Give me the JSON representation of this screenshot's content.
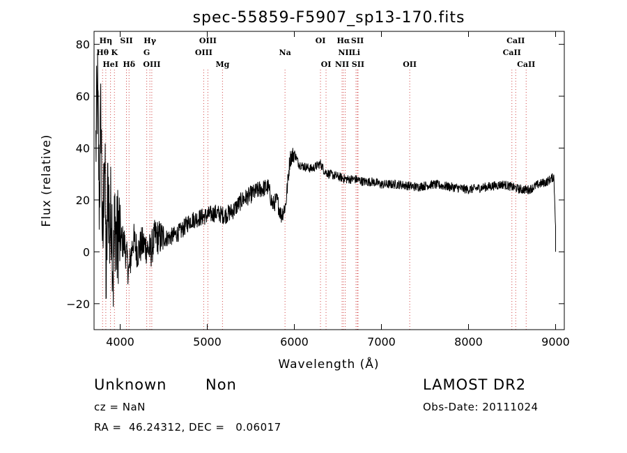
{
  "chart_data": {
    "type": "line",
    "title": "spec-55859-F5907_sp13-170.fits",
    "xlabel": "Wavelength (Å)",
    "ylabel": "Flux (relative)",
    "xlim": [
      3700,
      9100
    ],
    "ylim": [
      -30,
      85
    ],
    "xticks": [
      4000,
      5000,
      6000,
      7000,
      8000,
      9000
    ],
    "yticks": [
      -20,
      0,
      20,
      40,
      60,
      80
    ],
    "grid": false,
    "series": [
      {
        "color": "#000000",
        "x": [
          3720,
          3740,
          3760,
          3780,
          3800,
          3820,
          3840,
          3860,
          3880,
          3900,
          3920,
          3940,
          3960,
          3980,
          4000,
          4050,
          4100,
          4150,
          4200,
          4250,
          4300,
          4350,
          4400,
          4500,
          4600,
          4700,
          4800,
          4900,
          5000,
          5100,
          5200,
          5300,
          5400,
          5500,
          5600,
          5700,
          5750,
          5800,
          5850,
          5900,
          5950,
          6000,
          6050,
          6100,
          6200,
          6300,
          6350,
          6400,
          6500,
          6600,
          6700,
          6800,
          6900,
          7000,
          7200,
          7400,
          7600,
          7800,
          8000,
          8200,
          8400,
          8500,
          8600,
          8700,
          8800,
          8900,
          8980,
          9000
        ],
        "y": [
          40,
          62,
          20,
          55,
          -5,
          45,
          -15,
          30,
          5,
          20,
          -10,
          15,
          0,
          10,
          5,
          3,
          -8,
          5,
          0,
          3,
          2,
          0,
          6,
          5,
          6,
          8,
          12,
          13,
          14,
          15,
          14,
          16,
          20,
          22,
          24,
          25,
          18,
          20,
          14,
          18,
          36,
          38,
          34,
          33,
          32,
          34,
          31,
          30,
          29,
          28,
          28,
          27,
          27,
          26,
          26,
          25,
          26,
          25,
          24,
          25,
          26,
          25,
          24,
          24,
          26,
          27,
          29,
          10
        ]
      }
    ],
    "line_markers": [
      {
        "label": "Hη",
        "x": 3835,
        "row": 0
      },
      {
        "label": "Hθ",
        "x": 3798,
        "row": 1
      },
      {
        "label": "HeI",
        "x": 3889,
        "row": 2
      },
      {
        "label": "K",
        "x": 3934,
        "row": 1
      },
      {
        "label": "SII",
        "x": 4072,
        "row": 0
      },
      {
        "label": "Hδ",
        "x": 4102,
        "row": 2
      },
      {
        "label": "Hγ",
        "x": 4341,
        "row": 0
      },
      {
        "label": "G",
        "x": 4305,
        "row": 1
      },
      {
        "label": "OIII",
        "x": 4363,
        "row": 2
      },
      {
        "label": "OIII",
        "x": 5007,
        "row": 0
      },
      {
        "label": "OIII",
        "x": 4959,
        "row": 1
      },
      {
        "label": "Mg",
        "x": 5175,
        "row": 2
      },
      {
        "label": "Na",
        "x": 5893,
        "row": 1
      },
      {
        "label": "OI",
        "x": 6300,
        "row": 0
      },
      {
        "label": "OI",
        "x": 6364,
        "row": 2
      },
      {
        "label": "Hα",
        "x": 6563,
        "row": 0
      },
      {
        "label": "SII",
        "x": 6724,
        "row": 0
      },
      {
        "label": "NII",
        "x": 6584,
        "row": 1
      },
      {
        "label": "Li",
        "x": 6708,
        "row": 1
      },
      {
        "label": "NII",
        "x": 6548,
        "row": 2
      },
      {
        "label": "SII",
        "x": 6731,
        "row": 2
      },
      {
        "label": "OII",
        "x": 7325,
        "row": 2
      },
      {
        "label": "CaII",
        "x": 8542,
        "row": 0
      },
      {
        "label": "CaII",
        "x": 8498,
        "row": 1
      },
      {
        "label": "CaII",
        "x": 8662,
        "row": 2
      }
    ]
  },
  "info": {
    "class_label": "Unknown",
    "subclass_label": "Non",
    "survey_label": "LAMOST DR2",
    "cz_text": "cz = NaN",
    "obs_date_text": "Obs-Date: 20111024",
    "radec_text": "RA =  46.24312, DEC =   0.06017"
  }
}
